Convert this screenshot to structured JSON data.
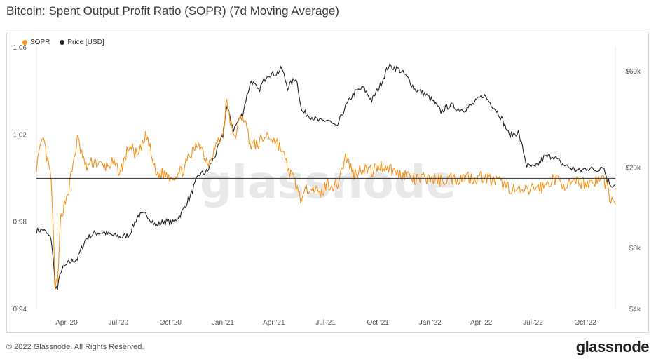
{
  "title": "Bitcoin: Spent Output Profit Ratio (SOPR) (7d Moving Average)",
  "footer": {
    "copyright": "© 2022 Glassnode. All Rights Reserved.",
    "logo": "glassnode"
  },
  "watermark": "glassnode",
  "colors": {
    "sopr": "#f7931a",
    "price": "#222222",
    "baseline": "#444444"
  },
  "chart_data": {
    "type": "line",
    "legend": [
      {
        "name": "SOPR",
        "color": "#f7931a"
      },
      {
        "name": "Price [USD]",
        "color": "#222222"
      }
    ],
    "legend_position": "top-left",
    "grid": false,
    "x_ticks": [
      "Apr '20",
      "Jul '20",
      "Oct '20",
      "Jan '21",
      "Apr '21",
      "Jul '21",
      "Oct '21",
      "Jan '22",
      "Apr '22",
      "Jul '22",
      "Oct '22"
    ],
    "x_range": [
      "2020-02-08",
      "2022-11-23"
    ],
    "y_left": {
      "ticks": [
        "0.94",
        "0.98",
        "1.02",
        "1.06"
      ],
      "range": [
        0.94,
        1.06
      ],
      "label": ""
    },
    "y_right": {
      "ticks": [
        "$4k",
        "$8k",
        "$20k",
        "$60k"
      ],
      "scale": "log",
      "label": ""
    },
    "reference_line": 1.0,
    "series": [
      {
        "name": "SOPR",
        "axis": "left",
        "x": [
          "2020-02-08",
          "2020-02-20",
          "2020-03-05",
          "2020-03-12",
          "2020-03-16",
          "2020-03-22",
          "2020-04-05",
          "2020-04-20",
          "2020-05-05",
          "2020-05-20",
          "2020-06-05",
          "2020-06-20",
          "2020-07-05",
          "2020-07-20",
          "2020-08-05",
          "2020-08-20",
          "2020-09-05",
          "2020-09-20",
          "2020-10-05",
          "2020-10-20",
          "2020-11-05",
          "2020-11-20",
          "2020-12-05",
          "2020-12-20",
          "2021-01-01",
          "2021-01-08",
          "2021-01-20",
          "2021-02-05",
          "2021-02-20",
          "2021-03-05",
          "2021-03-20",
          "2021-04-05",
          "2021-04-15",
          "2021-04-25",
          "2021-05-10",
          "2021-05-20",
          "2021-06-05",
          "2021-06-20",
          "2021-07-05",
          "2021-07-20",
          "2021-08-05",
          "2021-08-20",
          "2021-09-05",
          "2021-09-20",
          "2021-10-05",
          "2021-10-20",
          "2021-11-05",
          "2021-11-20",
          "2021-12-05",
          "2021-12-20",
          "2022-01-05",
          "2022-01-20",
          "2022-02-05",
          "2022-02-20",
          "2022-03-05",
          "2022-03-20",
          "2022-04-05",
          "2022-04-20",
          "2022-05-05",
          "2022-05-20",
          "2022-06-05",
          "2022-06-20",
          "2022-07-05",
          "2022-07-20",
          "2022-08-05",
          "2022-08-20",
          "2022-09-05",
          "2022-09-20",
          "2022-10-05",
          "2022-10-20",
          "2022-11-01",
          "2022-11-09",
          "2022-11-15",
          "2022-11-23"
        ],
        "values": [
          1.006,
          1.018,
          0.999,
          0.952,
          0.95,
          0.983,
          0.995,
          1.018,
          1.005,
          1.008,
          1.005,
          1.007,
          1.003,
          1.015,
          1.01,
          1.02,
          1.002,
          1.002,
          1.001,
          1.003,
          1.01,
          1.017,
          1.007,
          1.015,
          1.02,
          1.035,
          1.018,
          1.03,
          1.015,
          1.016,
          1.02,
          1.017,
          1.013,
          1.005,
          0.997,
          0.99,
          0.998,
          0.992,
          0.998,
          0.996,
          1.01,
          1.002,
          1.005,
          1.003,
          1.006,
          1.005,
          1.002,
          1.002,
          0.999,
          1.0,
          1.0,
          0.999,
          1.0,
          1.0,
          1.001,
          1.0,
          1.001,
          0.999,
          0.998,
          0.996,
          0.994,
          0.994,
          0.996,
          0.996,
          1.0,
          0.998,
          0.997,
          0.998,
          0.998,
          0.999,
          1.0,
          0.996,
          0.99,
          0.988
        ]
      },
      {
        "name": "Price [USD]",
        "axis": "right",
        "x": [
          "2020-02-08",
          "2020-02-20",
          "2020-03-05",
          "2020-03-12",
          "2020-03-16",
          "2020-03-22",
          "2020-04-05",
          "2020-04-20",
          "2020-05-05",
          "2020-05-20",
          "2020-06-05",
          "2020-06-20",
          "2020-07-05",
          "2020-07-20",
          "2020-08-05",
          "2020-08-20",
          "2020-09-05",
          "2020-09-20",
          "2020-10-05",
          "2020-10-20",
          "2020-11-05",
          "2020-11-20",
          "2020-12-05",
          "2020-12-20",
          "2021-01-01",
          "2021-01-08",
          "2021-01-20",
          "2021-02-05",
          "2021-02-20",
          "2021-03-05",
          "2021-03-20",
          "2021-04-05",
          "2021-04-15",
          "2021-04-25",
          "2021-05-10",
          "2021-05-20",
          "2021-06-05",
          "2021-06-20",
          "2021-07-05",
          "2021-07-20",
          "2021-08-05",
          "2021-08-20",
          "2021-09-05",
          "2021-09-20",
          "2021-10-05",
          "2021-10-20",
          "2021-11-05",
          "2021-11-20",
          "2021-12-05",
          "2021-12-20",
          "2022-01-05",
          "2022-01-20",
          "2022-02-05",
          "2022-02-20",
          "2022-03-05",
          "2022-03-20",
          "2022-04-05",
          "2022-04-20",
          "2022-05-05",
          "2022-05-20",
          "2022-06-05",
          "2022-06-20",
          "2022-07-05",
          "2022-07-20",
          "2022-08-05",
          "2022-08-20",
          "2022-09-05",
          "2022-09-20",
          "2022-10-05",
          "2022-10-20",
          "2022-11-01",
          "2022-11-09",
          "2022-11-15",
          "2022-11-23"
        ],
        "values": [
          9800,
          9900,
          8900,
          5200,
          5000,
          6200,
          6800,
          7100,
          8900,
          9500,
          9600,
          9300,
          9100,
          9300,
          11600,
          11800,
          10300,
          10900,
          10700,
          11900,
          14500,
          18500,
          19200,
          23500,
          29000,
          40000,
          31000,
          37000,
          54000,
          48000,
          58000,
          58500,
          62000,
          50000,
          56000,
          38000,
          36000,
          34000,
          34500,
          31500,
          40000,
          47000,
          50000,
          43000,
          51000,
          64000,
          62000,
          57000,
          49000,
          47000,
          43000,
          38000,
          41000,
          39000,
          39000,
          42000,
          46000,
          41000,
          36000,
          29000,
          30000,
          20500,
          20000,
          22500,
          23000,
          21000,
          20000,
          19300,
          20000,
          19500,
          20500,
          17500,
          16500,
          16500
        ]
      }
    ]
  }
}
